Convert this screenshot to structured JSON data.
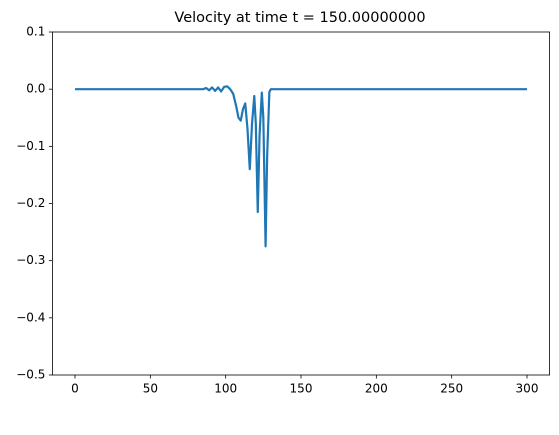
{
  "chart_data": {
    "type": "line",
    "title": "Velocity at time t =   150.00000000",
    "x": [
      0,
      60,
      85,
      87,
      89,
      91,
      93,
      95,
      97,
      99,
      101,
      103,
      105,
      107,
      108.5,
      110,
      111.5,
      113,
      114.5,
      116,
      117.5,
      119,
      120,
      121.3,
      122.5,
      124,
      125,
      126.5,
      127.5,
      129,
      130,
      150,
      300
    ],
    "series": [
      {
        "color": "#1f77b4",
        "values": [
          0,
          0,
          0,
          0.002,
          -0.002,
          0.003,
          -0.003,
          0.003,
          -0.004,
          0.004,
          0.005,
          0.0,
          -0.008,
          -0.03,
          -0.05,
          -0.055,
          -0.035,
          -0.025,
          -0.07,
          -0.14,
          -0.06,
          -0.012,
          -0.06,
          -0.215,
          -0.08,
          -0.006,
          -0.05,
          -0.275,
          -0.12,
          -0.005,
          0,
          0,
          0
        ]
      }
    ],
    "xlim": [
      -15,
      315
    ],
    "xticks": [
      0,
      50,
      100,
      150,
      200,
      250,
      300
    ],
    "ylim": [
      -0.5,
      0.1
    ],
    "yticks": [
      {
        "value": -0.5,
        "label": "−0.5"
      },
      {
        "value": -0.4,
        "label": "−0.4"
      },
      {
        "value": -0.3,
        "label": "−0.3"
      },
      {
        "value": -0.2,
        "label": "−0.2"
      },
      {
        "value": -0.1,
        "label": "−0.1"
      },
      {
        "value": 0,
        "label": "0.0"
      },
      {
        "value": 0.1,
        "label": "0.1"
      }
    ]
  }
}
